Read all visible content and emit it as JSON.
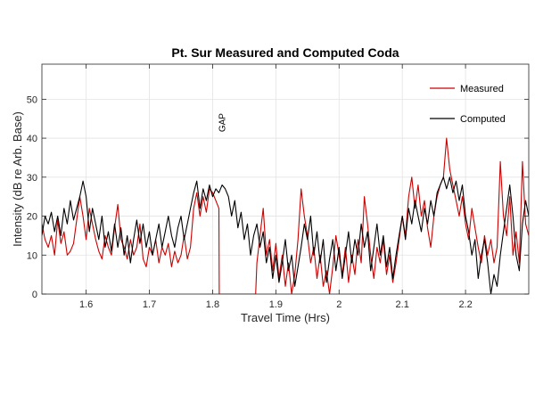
{
  "chart_data": {
    "type": "line",
    "title": "Pt. Sur Measured and Computed Coda",
    "xlabel": "Travel Time (Hrs)",
    "ylabel": "Intensity (dB re Arb. Base)",
    "xlim": [
      1.53,
      2.3
    ],
    "ylim": [
      0,
      59
    ],
    "xticks": [
      1.6,
      1.7,
      1.8,
      1.9,
      2,
      2.1,
      2.2
    ],
    "xtick_labels": [
      "1.6",
      "1.7",
      "1.8",
      "1.9",
      "2",
      "2.1",
      "2.2"
    ],
    "yticks": [
      0,
      10,
      20,
      30,
      40,
      50
    ],
    "ytick_labels": [
      "0",
      "10",
      "20",
      "30",
      "40",
      "50"
    ],
    "grid": true,
    "legend_position": "top-right",
    "annotations": [
      {
        "text": "GAP",
        "x": 1.82,
        "y": 44,
        "rotation": -90
      }
    ],
    "series": [
      {
        "name": "Measured",
        "color": "#cc0000",
        "points": [
          [
            1.53,
            18
          ],
          [
            1.535,
            14
          ],
          [
            1.54,
            12
          ],
          [
            1.545,
            15
          ],
          [
            1.55,
            10
          ],
          [
            1.555,
            19
          ],
          [
            1.56,
            13
          ],
          [
            1.565,
            16
          ],
          [
            1.57,
            10
          ],
          [
            1.575,
            11
          ],
          [
            1.58,
            13
          ],
          [
            1.585,
            19
          ],
          [
            1.59,
            25
          ],
          [
            1.595,
            20
          ],
          [
            1.6,
            14
          ],
          [
            1.605,
            22
          ],
          [
            1.61,
            18
          ],
          [
            1.615,
            14
          ],
          [
            1.62,
            11
          ],
          [
            1.625,
            9
          ],
          [
            1.63,
            15
          ],
          [
            1.635,
            12
          ],
          [
            1.64,
            10
          ],
          [
            1.645,
            17
          ],
          [
            1.65,
            23
          ],
          [
            1.655,
            14
          ],
          [
            1.66,
            12
          ],
          [
            1.665,
            9
          ],
          [
            1.67,
            14
          ],
          [
            1.675,
            10
          ],
          [
            1.68,
            12
          ],
          [
            1.685,
            18
          ],
          [
            1.69,
            9
          ],
          [
            1.695,
            7
          ],
          [
            1.7,
            12
          ],
          [
            1.705,
            10
          ],
          [
            1.71,
            14
          ],
          [
            1.715,
            8
          ],
          [
            1.72,
            12
          ],
          [
            1.725,
            10
          ],
          [
            1.73,
            13
          ],
          [
            1.735,
            7
          ],
          [
            1.74,
            11
          ],
          [
            1.745,
            8
          ],
          [
            1.75,
            10
          ],
          [
            1.755,
            15
          ],
          [
            1.76,
            9
          ],
          [
            1.765,
            12
          ],
          [
            1.77,
            22
          ],
          [
            1.775,
            26
          ],
          [
            1.78,
            20
          ],
          [
            1.785,
            25
          ],
          [
            1.79,
            21
          ],
          [
            1.795,
            27
          ],
          [
            1.8,
            26
          ],
          [
            1.805,
            24
          ],
          [
            1.81,
            22
          ],
          [
            1.8105,
            0
          ],
          [
            1.83,
            0
          ],
          [
            1.85,
            0
          ],
          [
            1.868,
            0
          ],
          [
            1.87,
            8
          ],
          [
            1.875,
            15
          ],
          [
            1.88,
            22
          ],
          [
            1.885,
            10
          ],
          [
            1.89,
            14
          ],
          [
            1.895,
            6
          ],
          [
            1.9,
            13
          ],
          [
            1.905,
            4
          ],
          [
            1.91,
            10
          ],
          [
            1.915,
            2
          ],
          [
            1.92,
            8
          ],
          [
            1.925,
            0
          ],
          [
            1.93,
            5
          ],
          [
            1.935,
            14
          ],
          [
            1.94,
            27
          ],
          [
            1.945,
            20
          ],
          [
            1.95,
            15
          ],
          [
            1.955,
            8
          ],
          [
            1.96,
            12
          ],
          [
            1.965,
            4
          ],
          [
            1.97,
            10
          ],
          [
            1.975,
            2
          ],
          [
            1.98,
            6
          ],
          [
            1.985,
            0
          ],
          [
            1.99,
            7
          ],
          [
            1.995,
            15
          ],
          [
            2.0,
            10
          ],
          [
            2.005,
            5
          ],
          [
            2.01,
            12
          ],
          [
            2.015,
            3
          ],
          [
            2.02,
            10
          ],
          [
            2.025,
            5
          ],
          [
            2.03,
            14
          ],
          [
            2.035,
            8
          ],
          [
            2.04,
            25
          ],
          [
            2.045,
            18
          ],
          [
            2.05,
            10
          ],
          [
            2.055,
            4
          ],
          [
            2.06,
            12
          ],
          [
            2.065,
            8
          ],
          [
            2.07,
            14
          ],
          [
            2.075,
            5
          ],
          [
            2.08,
            10
          ],
          [
            2.085,
            3
          ],
          [
            2.09,
            8
          ],
          [
            2.095,
            14
          ],
          [
            2.1,
            20
          ],
          [
            2.105,
            15
          ],
          [
            2.11,
            25
          ],
          [
            2.115,
            30
          ],
          [
            2.12,
            22
          ],
          [
            2.125,
            28
          ],
          [
            2.13,
            20
          ],
          [
            2.135,
            24
          ],
          [
            2.14,
            17
          ],
          [
            2.145,
            12
          ],
          [
            2.15,
            20
          ],
          [
            2.155,
            25
          ],
          [
            2.16,
            28
          ],
          [
            2.165,
            30
          ],
          [
            2.17,
            40
          ],
          [
            2.175,
            32
          ],
          [
            2.18,
            28
          ],
          [
            2.185,
            24
          ],
          [
            2.19,
            20
          ],
          [
            2.195,
            25
          ],
          [
            2.2,
            18
          ],
          [
            2.205,
            14
          ],
          [
            2.21,
            22
          ],
          [
            2.215,
            17
          ],
          [
            2.22,
            12
          ],
          [
            2.225,
            8
          ],
          [
            2.23,
            15
          ],
          [
            2.235,
            10
          ],
          [
            2.24,
            14
          ],
          [
            2.245,
            8
          ],
          [
            2.25,
            12
          ],
          [
            2.255,
            34
          ],
          [
            2.26,
            20
          ],
          [
            2.265,
            15
          ],
          [
            2.27,
            25
          ],
          [
            2.275,
            10
          ],
          [
            2.28,
            16
          ],
          [
            2.285,
            8
          ],
          [
            2.29,
            34
          ],
          [
            2.295,
            18
          ],
          [
            2.3,
            15
          ]
        ]
      },
      {
        "name": "Computed",
        "color": "#000000",
        "points": [
          [
            1.53,
            15
          ],
          [
            1.535,
            20
          ],
          [
            1.54,
            18
          ],
          [
            1.545,
            21
          ],
          [
            1.55,
            16
          ],
          [
            1.555,
            20
          ],
          [
            1.56,
            15
          ],
          [
            1.565,
            22
          ],
          [
            1.57,
            18
          ],
          [
            1.575,
            24
          ],
          [
            1.58,
            19
          ],
          [
            1.585,
            22
          ],
          [
            1.59,
            25
          ],
          [
            1.595,
            29
          ],
          [
            1.6,
            25
          ],
          [
            1.605,
            16
          ],
          [
            1.61,
            22
          ],
          [
            1.615,
            18
          ],
          [
            1.62,
            14
          ],
          [
            1.625,
            20
          ],
          [
            1.63,
            12
          ],
          [
            1.635,
            16
          ],
          [
            1.64,
            11
          ],
          [
            1.645,
            18
          ],
          [
            1.65,
            12
          ],
          [
            1.655,
            17
          ],
          [
            1.66,
            10
          ],
          [
            1.665,
            15
          ],
          [
            1.67,
            8
          ],
          [
            1.675,
            14
          ],
          [
            1.68,
            19
          ],
          [
            1.685,
            13
          ],
          [
            1.69,
            18
          ],
          [
            1.695,
            12
          ],
          [
            1.7,
            16
          ],
          [
            1.705,
            10
          ],
          [
            1.71,
            14
          ],
          [
            1.715,
            18
          ],
          [
            1.72,
            12
          ],
          [
            1.725,
            16
          ],
          [
            1.73,
            20
          ],
          [
            1.735,
            15
          ],
          [
            1.74,
            12
          ],
          [
            1.745,
            17
          ],
          [
            1.75,
            20
          ],
          [
            1.755,
            14
          ],
          [
            1.76,
            18
          ],
          [
            1.765,
            22
          ],
          [
            1.77,
            26
          ],
          [
            1.775,
            29
          ],
          [
            1.78,
            22
          ],
          [
            1.785,
            27
          ],
          [
            1.79,
            24
          ],
          [
            1.795,
            28
          ],
          [
            1.8,
            25
          ],
          [
            1.805,
            27
          ],
          [
            1.81,
            26
          ],
          [
            1.815,
            28
          ],
          [
            1.82,
            27
          ],
          [
            1.825,
            25
          ],
          [
            1.83,
            20
          ],
          [
            1.835,
            24
          ],
          [
            1.84,
            17
          ],
          [
            1.845,
            21
          ],
          [
            1.85,
            14
          ],
          [
            1.855,
            18
          ],
          [
            1.86,
            10
          ],
          [
            1.865,
            15
          ],
          [
            1.87,
            18
          ],
          [
            1.875,
            12
          ],
          [
            1.88,
            16
          ],
          [
            1.885,
            8
          ],
          [
            1.89,
            12
          ],
          [
            1.895,
            4
          ],
          [
            1.9,
            10
          ],
          [
            1.905,
            3
          ],
          [
            1.91,
            8
          ],
          [
            1.915,
            14
          ],
          [
            1.92,
            6
          ],
          [
            1.925,
            10
          ],
          [
            1.93,
            2
          ],
          [
            1.935,
            7
          ],
          [
            1.94,
            12
          ],
          [
            1.945,
            18
          ],
          [
            1.95,
            14
          ],
          [
            1.955,
            20
          ],
          [
            1.96,
            10
          ],
          [
            1.965,
            16
          ],
          [
            1.97,
            8
          ],
          [
            1.975,
            14
          ],
          [
            1.98,
            3
          ],
          [
            1.985,
            9
          ],
          [
            1.99,
            14
          ],
          [
            1.995,
            6
          ],
          [
            2.0,
            12
          ],
          [
            2.005,
            4
          ],
          [
            2.01,
            10
          ],
          [
            2.015,
            16
          ],
          [
            2.02,
            8
          ],
          [
            2.025,
            14
          ],
          [
            2.03,
            10
          ],
          [
            2.035,
            18
          ],
          [
            2.04,
            12
          ],
          [
            2.045,
            16
          ],
          [
            2.05,
            6
          ],
          [
            2.055,
            12
          ],
          [
            2.06,
            18
          ],
          [
            2.065,
            10
          ],
          [
            2.07,
            15
          ],
          [
            2.075,
            7
          ],
          [
            2.08,
            12
          ],
          [
            2.085,
            4
          ],
          [
            2.09,
            10
          ],
          [
            2.095,
            15
          ],
          [
            2.1,
            20
          ],
          [
            2.105,
            14
          ],
          [
            2.11,
            22
          ],
          [
            2.115,
            18
          ],
          [
            2.12,
            24
          ],
          [
            2.125,
            20
          ],
          [
            2.13,
            16
          ],
          [
            2.135,
            22
          ],
          [
            2.14,
            18
          ],
          [
            2.145,
            24
          ],
          [
            2.15,
            20
          ],
          [
            2.155,
            26
          ],
          [
            2.16,
            28
          ],
          [
            2.165,
            30
          ],
          [
            2.17,
            27
          ],
          [
            2.175,
            30
          ],
          [
            2.18,
            26
          ],
          [
            2.185,
            29
          ],
          [
            2.19,
            24
          ],
          [
            2.195,
            28
          ],
          [
            2.2,
            20
          ],
          [
            2.205,
            16
          ],
          [
            2.21,
            10
          ],
          [
            2.215,
            14
          ],
          [
            2.22,
            4
          ],
          [
            2.225,
            10
          ],
          [
            2.23,
            14
          ],
          [
            2.235,
            8
          ],
          [
            2.24,
            0
          ],
          [
            2.245,
            5
          ],
          [
            2.25,
            2
          ],
          [
            2.255,
            10
          ],
          [
            2.26,
            16
          ],
          [
            2.265,
            22
          ],
          [
            2.27,
            28
          ],
          [
            2.275,
            20
          ],
          [
            2.28,
            10
          ],
          [
            2.285,
            6
          ],
          [
            2.29,
            18
          ],
          [
            2.295,
            24
          ],
          [
            2.3,
            20
          ]
        ]
      }
    ]
  }
}
